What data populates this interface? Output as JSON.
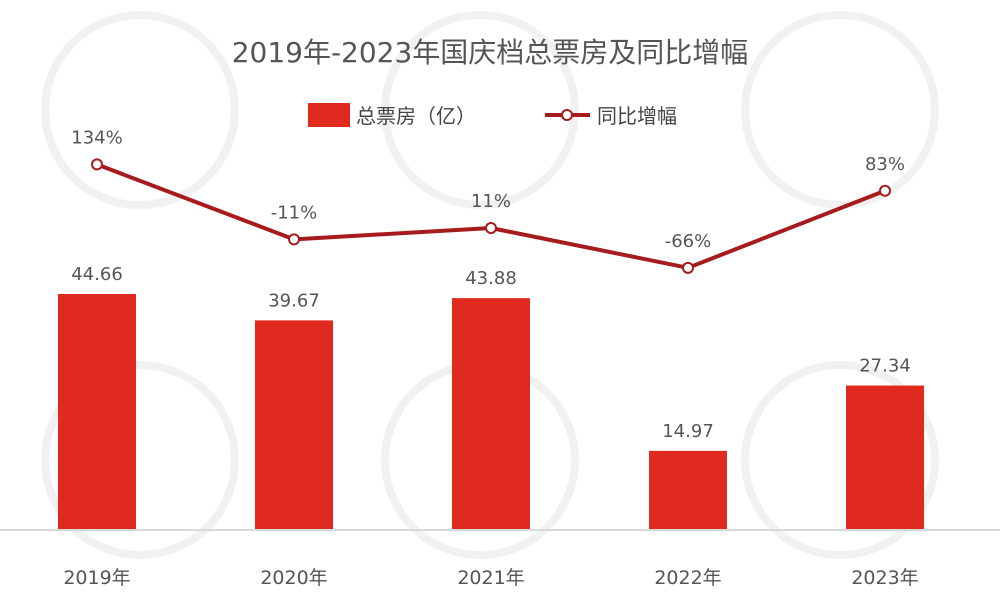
{
  "chart_data": {
    "type": "bar",
    "title": "2019年-2023年国庆档总票房及同比增幅",
    "categories": [
      "2019年",
      "2020年",
      "2021年",
      "2022年",
      "2023年"
    ],
    "series": [
      {
        "name": "总票房（亿）",
        "type": "bar",
        "values": [
          44.66,
          39.67,
          43.88,
          14.97,
          27.34
        ],
        "labels": [
          "44.66",
          "39.67",
          "43.88",
          "14.97",
          "27.34"
        ]
      },
      {
        "name": "同比增幅",
        "type": "line",
        "values": [
          134,
          -11,
          11,
          -66,
          83
        ],
        "labels": [
          "134%",
          "-11%",
          "11%",
          "-66%",
          "83%"
        ]
      }
    ],
    "legend_position": "top-center",
    "grid": false,
    "colors": {
      "bar": "#e02a20",
      "line": "#a61b1b",
      "marker_fill": "#ffffff",
      "axis": "#d9d9d9",
      "text": "#555555"
    }
  }
}
